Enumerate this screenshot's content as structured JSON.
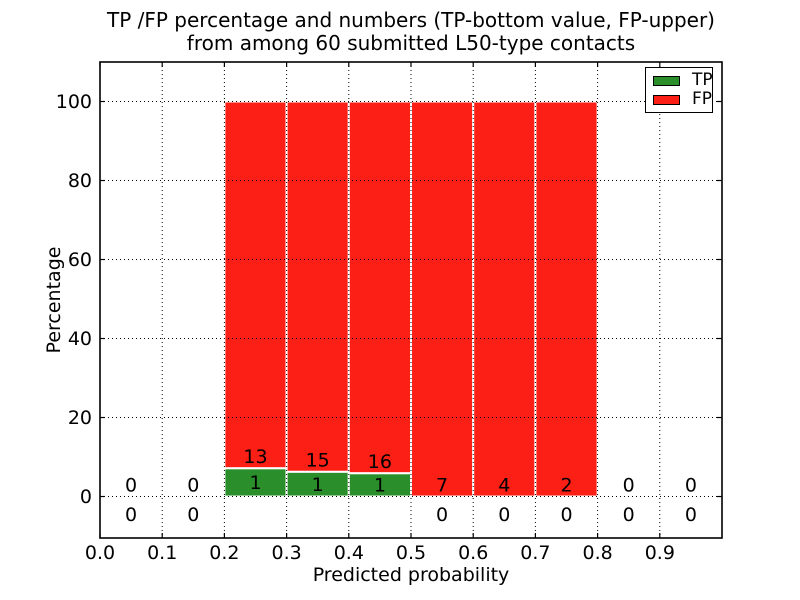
{
  "title": {
    "line1": "TP /FP percentage and numbers (TP-bottom value, FP-upper)",
    "line2": "from among 60 submitted L50-type contacts"
  },
  "axes": {
    "xlabel": "Predicted probability",
    "ylabel": "Percentage",
    "x_ticks": [
      "0.0",
      "0.1",
      "0.2",
      "0.3",
      "0.4",
      "0.5",
      "0.6",
      "0.7",
      "0.8",
      "0.9"
    ],
    "y_ticks": [
      "0",
      "20",
      "40",
      "60",
      "80",
      "100"
    ]
  },
  "legend": {
    "position": "upper right",
    "items": [
      {
        "label": "TP",
        "color": "#2a8f2a"
      },
      {
        "label": "FP",
        "color": "#fb1f15"
      }
    ]
  },
  "chart_data": {
    "type": "bar",
    "stacked": true,
    "title": "TP /FP percentage and numbers (TP-bottom value, FP-upper) from among 60 submitted L50-type contacts",
    "xlabel": "Predicted probability",
    "ylabel": "Percentage",
    "bin_edges": [
      0.0,
      0.1,
      0.2,
      0.3,
      0.4,
      0.5,
      0.6,
      0.7,
      0.8,
      0.9,
      1.0
    ],
    "series": [
      {
        "name": "TP",
        "color": "#2a8f2a",
        "counts": [
          0,
          0,
          1,
          1,
          1,
          0,
          0,
          0,
          0,
          0
        ]
      },
      {
        "name": "FP",
        "color": "#fb1f15",
        "counts": [
          0,
          0,
          13,
          15,
          16,
          7,
          4,
          2,
          0,
          0
        ]
      }
    ],
    "bar_unit": "percent share of bin; every non-empty bin stacks to 100",
    "tp_percent_by_bin": [
      0,
      0,
      7.14,
      6.25,
      5.88,
      0,
      0,
      0,
      0,
      0
    ],
    "annotation_rule": "FP count printed upper, TP count printed at bottom of each bin",
    "xlim": [
      0.0,
      1.0
    ],
    "ylim": [
      -10.5,
      110
    ],
    "x_tick_values": [
      0.0,
      0.1,
      0.2,
      0.3,
      0.4,
      0.5,
      0.6,
      0.7,
      0.8,
      0.9
    ],
    "y_tick_values": [
      0,
      20,
      40,
      60,
      80,
      100
    ],
    "grid": true,
    "grid_style": "dotted",
    "grid_color": "#000000",
    "bar_edge_color": "#ffffff",
    "legend_position": "upper right"
  }
}
